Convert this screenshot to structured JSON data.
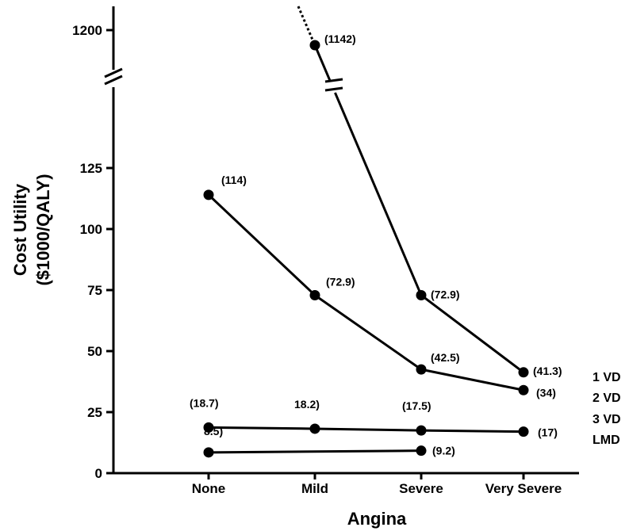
{
  "chart_data": {
    "type": "line",
    "title": "",
    "xlabel": "Angina",
    "ylabel_lines": [
      "Cost Utility",
      "($1000/QALY)"
    ],
    "categories": [
      "None",
      "Mild",
      "Severe",
      "Very Severe"
    ],
    "y_ticks": [
      "0",
      "25",
      "50",
      "75",
      "100",
      "125",
      "1200"
    ],
    "ylim": [
      0,
      1200
    ],
    "axis_break": "between 125 and 1200",
    "grid": false,
    "legend_position": "right",
    "series": [
      {
        "name": "1 VD",
        "points": [
          {
            "x": "Mild",
            "y": 1142,
            "label": "(1142)"
          },
          {
            "x": "Severe",
            "y": 72.9,
            "label": "(72.9)"
          },
          {
            "x": "Very Severe",
            "y": 41.3,
            "label": "(41.3)"
          }
        ]
      },
      {
        "name": "2 VD",
        "points": [
          {
            "x": "None",
            "y": 114,
            "label": "(114)"
          },
          {
            "x": "Mild",
            "y": 72.9,
            "label": "(72.9)"
          },
          {
            "x": "Severe",
            "y": 42.5,
            "label": "(42.5)"
          },
          {
            "x": "Very Severe",
            "y": 34,
            "label": "(34)"
          }
        ]
      },
      {
        "name": "3 VD",
        "points": [
          {
            "x": "None",
            "y": 18.7,
            "label": "(18.7)"
          },
          {
            "x": "Mild",
            "y": 18.2,
            "label": "18.2)"
          },
          {
            "x": "Severe",
            "y": 17.5,
            "label": "(17.5)"
          },
          {
            "x": "Very Severe",
            "y": 17,
            "label": "(17)"
          }
        ]
      },
      {
        "name": "LMD",
        "points": [
          {
            "x": "None",
            "y": 8.5,
            "label": "8.5)"
          },
          {
            "x": "Severe",
            "y": 9.2,
            "label": "(9.2)"
          }
        ]
      }
    ]
  }
}
